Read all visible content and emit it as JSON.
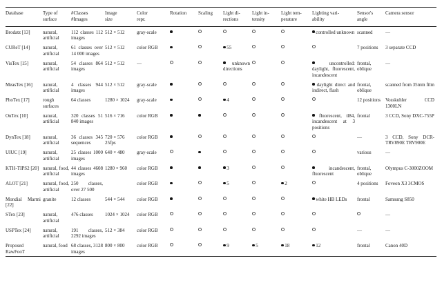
{
  "table": {
    "columns": [
      {
        "id": "database",
        "label": "Database"
      },
      {
        "id": "surface-type",
        "label": "Type of\nsurface"
      },
      {
        "id": "classes-images",
        "label": "#Classes\n#Images"
      },
      {
        "id": "image-size",
        "label": "Image\nsize"
      },
      {
        "id": "color-repr",
        "label": "Color\nrepr."
      },
      {
        "id": "rotation",
        "label": "Rotation"
      },
      {
        "id": "scaling",
        "label": "Scaling"
      },
      {
        "id": "light-directions",
        "label": "Light di-\nrections"
      },
      {
        "id": "light-intensity",
        "label": "Light in-\ntensity"
      },
      {
        "id": "light-temperature",
        "label": "Light tem-\nperature"
      },
      {
        "id": "lighting-variability",
        "label": "Lighting vari-\nability"
      },
      {
        "id": "sensor-angle",
        "label": "Sensor's\nangle"
      },
      {
        "id": "camera-sensor",
        "label": "Camera sensor"
      }
    ],
    "symbols": {
      "dot": "feature present",
      "circle": "feature absent"
    },
    "rows": [
      {
        "cells": [
          {
            "text": "Brodatz [13]"
          },
          {
            "text": "natural, artificial"
          },
          {
            "text": "112 classes 112 images"
          },
          {
            "text": "512 × 512"
          },
          {
            "text": "gray-scale"
          },
          {
            "sym": "dot"
          },
          {
            "sym": "circle"
          },
          {
            "sym": "circle"
          },
          {
            "sym": "circle"
          },
          {
            "sym": "circle"
          },
          {
            "sym": "dot",
            "text": "controlled unknown"
          },
          {
            "text": "scanned"
          },
          {
            "text": "—"
          }
        ]
      },
      {
        "cells": [
          {
            "text": "CUReT [14]"
          },
          {
            "text": "natural, artificial"
          },
          {
            "text": "61 classes over 14 000 images"
          },
          {
            "text": "512 × 512"
          },
          {
            "text": "color RGB"
          },
          {
            "sym": "dot"
          },
          {
            "sym": "circle"
          },
          {
            "sym": "dot",
            "text": "55"
          },
          {
            "sym": "circle"
          },
          {
            "sym": "circle"
          },
          {
            "sym": "circle"
          },
          {
            "text": "7 positions"
          },
          {
            "text": "3 separate CCD"
          }
        ]
      },
      {
        "cells": [
          {
            "text": "VisTex [15]"
          },
          {
            "text": "natural, artificial"
          },
          {
            "text": "54 classes 864 images"
          },
          {
            "text": "512 × 512"
          },
          {
            "text": "—"
          },
          {
            "sym": "circle"
          },
          {
            "sym": "circle"
          },
          {
            "sym": "dot",
            "text": "unknown directions"
          },
          {
            "sym": "circle"
          },
          {
            "sym": "circle"
          },
          {
            "sym": "dot",
            "text": "uncontrolled: daylight, fluorescent, incandescent"
          },
          {
            "text": "frontal, oblique"
          },
          {
            "text": "—"
          }
        ]
      },
      {
        "cells": [
          {
            "text": "MeasTex [16]"
          },
          {
            "text": "natural, artificial"
          },
          {
            "text": "4 classes 944 images"
          },
          {
            "text": "512 × 512"
          },
          {
            "text": "gray-scale"
          },
          {
            "sym": "dot"
          },
          {
            "sym": "circle"
          },
          {
            "sym": "circle"
          },
          {
            "sym": "circle"
          },
          {
            "sym": "circle"
          },
          {
            "sym": "dot",
            "text": "daylight direct and indirect, flash"
          },
          {
            "text": "frontal, oblique"
          },
          {
            "text": "scanned from 35mm film"
          }
        ]
      },
      {
        "cells": [
          {
            "text": "PhoTex [17]"
          },
          {
            "text": "rough surfaces"
          },
          {
            "text": "64 classes"
          },
          {
            "text": "1280 × 1024"
          },
          {
            "text": "gray-scale"
          },
          {
            "sym": "dot"
          },
          {
            "sym": "circle"
          },
          {
            "sym": "dot",
            "text": "4"
          },
          {
            "sym": "circle"
          },
          {
            "sym": "circle"
          },
          {
            "sym": "circle"
          },
          {
            "text": "12 positions"
          },
          {
            "text": "Vosskuhler CCD 1300LN"
          }
        ]
      },
      {
        "cells": [
          {
            "text": "OuTex [10]"
          },
          {
            "text": "natural, artificial"
          },
          {
            "text": "320 classes 51 840 images"
          },
          {
            "text": "516 × 716"
          },
          {
            "text": "color RGB"
          },
          {
            "sym": "dot"
          },
          {
            "sym": "dot"
          },
          {
            "sym": "circle"
          },
          {
            "sym": "circle"
          },
          {
            "sym": "circle"
          },
          {
            "sym": "dot",
            "text": "fluorescent, tl84, incandescent at 3 positions"
          },
          {
            "text": "frontal"
          },
          {
            "text": "3 CCD, Sony DXC-755P"
          }
        ]
      },
      {
        "cells": [
          {
            "text": "DynTex [18]"
          },
          {
            "text": "natural, artificial"
          },
          {
            "text": "36 classes 345 sequences"
          },
          {
            "text": "720 × 576\n25fps"
          },
          {
            "text": "color RGB"
          },
          {
            "sym": "dot"
          },
          {
            "sym": "circle"
          },
          {
            "sym": "circle"
          },
          {
            "sym": "circle"
          },
          {
            "sym": "circle"
          },
          {
            "sym": "circle"
          },
          {
            "text": "—"
          },
          {
            "text": "3 CCD, Sony DCR-TRV890E TRV900E"
          }
        ]
      },
      {
        "cells": [
          {
            "text": "UIUC [19]"
          },
          {
            "text": "natural, artificial"
          },
          {
            "text": "25 classes 1000 images"
          },
          {
            "text": "640 × 480"
          },
          {
            "text": "gray-scale"
          },
          {
            "sym": "circle"
          },
          {
            "sym": "dot"
          },
          {
            "sym": "circle"
          },
          {
            "sym": "circle"
          },
          {
            "sym": "circle"
          },
          {
            "sym": "circle"
          },
          {
            "text": "various"
          },
          {
            "text": "—"
          }
        ]
      },
      {
        "cells": [
          {
            "text": "KTH-TIPS2 [20]"
          },
          {
            "text": "natural, food, artificial"
          },
          {
            "text": "44 classes 4608 images"
          },
          {
            "text": "1280 × 960"
          },
          {
            "text": "color RGB"
          },
          {
            "sym": "dot"
          },
          {
            "sym": "dot"
          },
          {
            "sym": "dot",
            "text": "3"
          },
          {
            "sym": "circle"
          },
          {
            "sym": "circle"
          },
          {
            "sym": "dot",
            "text": "incandescent, fluorescent"
          },
          {
            "text": "frontal, oblique"
          },
          {
            "text": "Olympus C-3000ZOOM"
          }
        ]
      },
      {
        "cells": [
          {
            "text": "ALOT [21]"
          },
          {
            "text": "natural, food, artificial"
          },
          {
            "text": "250 classes, over 27 500"
          },
          {
            "text": ""
          },
          {
            "text": "color RGB"
          },
          {
            "sym": "dot"
          },
          {
            "sym": "circle"
          },
          {
            "sym": "dot",
            "text": "5"
          },
          {
            "sym": "circle"
          },
          {
            "sym": "dot",
            "text": "2"
          },
          {
            "sym": "circle"
          },
          {
            "text": "4 positions"
          },
          {
            "text": "Foveon X3 3CMOS"
          }
        ]
      },
      {
        "cells": [
          {
            "text": "Mondial Marmi [22]"
          },
          {
            "text": "granite"
          },
          {
            "text": "12 classes"
          },
          {
            "text": "544 × 544"
          },
          {
            "text": "color RGB"
          },
          {
            "sym": "dot"
          },
          {
            "sym": "circle"
          },
          {
            "sym": "circle"
          },
          {
            "sym": "circle"
          },
          {
            "sym": "circle"
          },
          {
            "sym": "dot",
            "text": "white HB LEDs"
          },
          {
            "text": "frontal"
          },
          {
            "text": "Samsung S850"
          }
        ]
      },
      {
        "cells": [
          {
            "text": "STex [23]"
          },
          {
            "text": "natural, artificial"
          },
          {
            "text": "476 classes"
          },
          {
            "text": "1024 × 1024"
          },
          {
            "text": "color RGB"
          },
          {
            "sym": "circle"
          },
          {
            "sym": "circle"
          },
          {
            "sym": "circle"
          },
          {
            "sym": "circle"
          },
          {
            "sym": "circle"
          },
          {
            "sym": "circle"
          },
          {
            "sym": "circle"
          },
          {
            "text": "—"
          }
        ]
      },
      {
        "cells": [
          {
            "text": "USPTex [24]"
          },
          {
            "text": "natural, artificial"
          },
          {
            "text": "191 classes, 2292 images"
          },
          {
            "text": "512 × 384"
          },
          {
            "text": "color RGB"
          },
          {
            "sym": "circle"
          },
          {
            "sym": "circle"
          },
          {
            "sym": "circle"
          },
          {
            "sym": "circle"
          },
          {
            "sym": "circle"
          },
          {
            "sym": "circle"
          },
          {
            "text": "—"
          },
          {
            "text": "—"
          }
        ]
      },
      {
        "cells": [
          {
            "text": "Proposed RawFooT"
          },
          {
            "text": "natural, food"
          },
          {
            "text": "68 classes, 3128 images"
          },
          {
            "text": "800 × 800"
          },
          {
            "text": "color RGB"
          },
          {
            "sym": "circle"
          },
          {
            "sym": "circle"
          },
          {
            "sym": "dot",
            "text": "9"
          },
          {
            "sym": "dot",
            "text": "5"
          },
          {
            "sym": "dot",
            "text": "18"
          },
          {
            "sym": "dot",
            "text": "12"
          },
          {
            "text": "frontal"
          },
          {
            "text": "Canon 40D"
          }
        ]
      }
    ]
  }
}
